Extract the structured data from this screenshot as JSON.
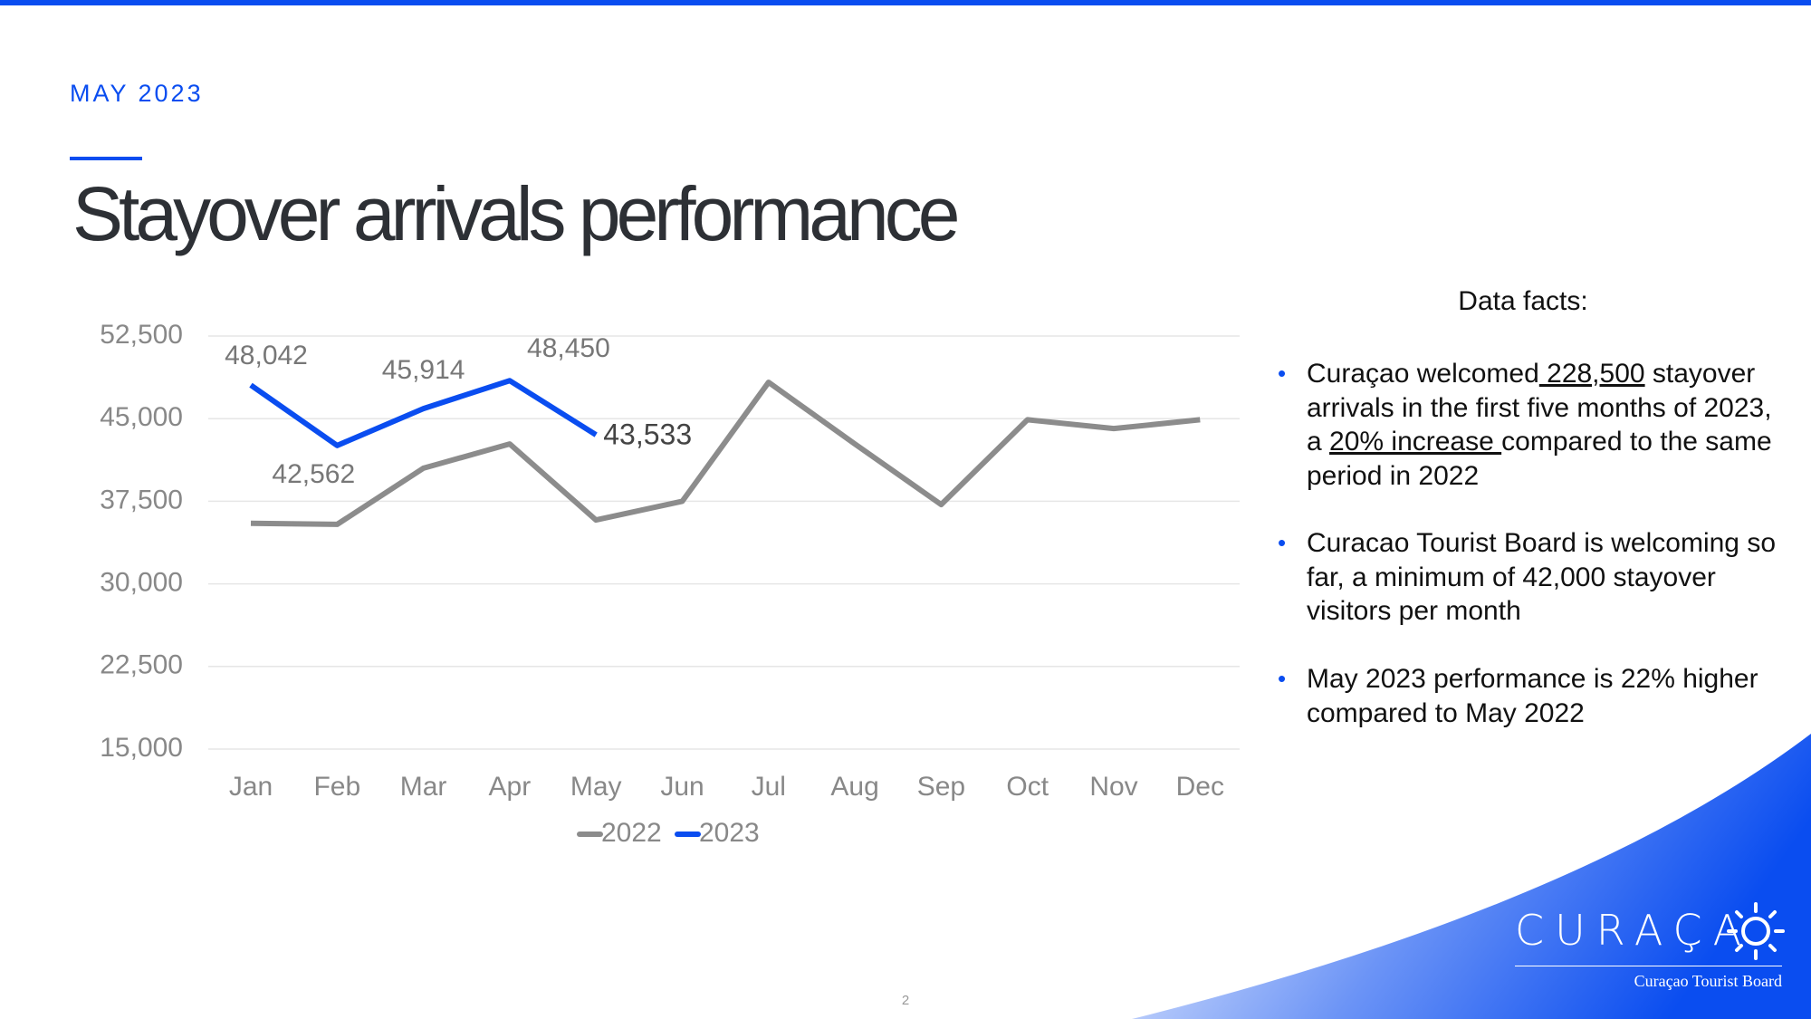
{
  "header": {
    "date": "MAY 2023",
    "title": "Stayover arrivals performance"
  },
  "chart_data": {
    "type": "line",
    "categories": [
      "Jan",
      "Feb",
      "Mar",
      "Apr",
      "May",
      "Jun",
      "Jul",
      "Aug",
      "Sep",
      "Oct",
      "Nov",
      "Dec"
    ],
    "series": [
      {
        "name": "2022",
        "color": "#8c8c8c",
        "values": [
          35500,
          35400,
          40500,
          42700,
          35800,
          37500,
          48300,
          42700,
          37200,
          44900,
          44100,
          44900
        ]
      },
      {
        "name": "2023",
        "color": "#0a4df0",
        "values": [
          48042,
          42562,
          45914,
          48450,
          43533,
          null,
          null,
          null,
          null,
          null,
          null,
          null
        ],
        "value_labels": [
          "48,042",
          "42,562",
          "45,914",
          "48,450",
          "43,533",
          null,
          null,
          null,
          null,
          null,
          null,
          null
        ]
      }
    ],
    "ylim": [
      15000,
      52500
    ],
    "yticks": [
      {
        "value": 15000,
        "label": "15,000"
      },
      {
        "value": 22500,
        "label": "22,500"
      },
      {
        "value": 30000,
        "label": "30,000"
      },
      {
        "value": 37500,
        "label": "37,500"
      },
      {
        "value": 45000,
        "label": "45,000"
      },
      {
        "value": 52500,
        "label": "52,500"
      }
    ],
    "grid": true,
    "legend": "bottom"
  },
  "facts": {
    "title": "Data facts:",
    "items": [
      [
        "Curaçao welcomed",
        " 228,500",
        " stayover arrivals in the first five months of 2023, a ",
        "20% increase ",
        "compared to the same period in 2022"
      ],
      [
        "Curacao Tourist Board is welcoming so far, a minimum of 42,000 stayover visitors per month"
      ],
      [
        "May 2023 performance is 22% higher compared to May 2022"
      ]
    ]
  },
  "footer": {
    "page": "2",
    "logo": "CURAÇA",
    "logo_sub": "Curaçao Tourist Board"
  }
}
